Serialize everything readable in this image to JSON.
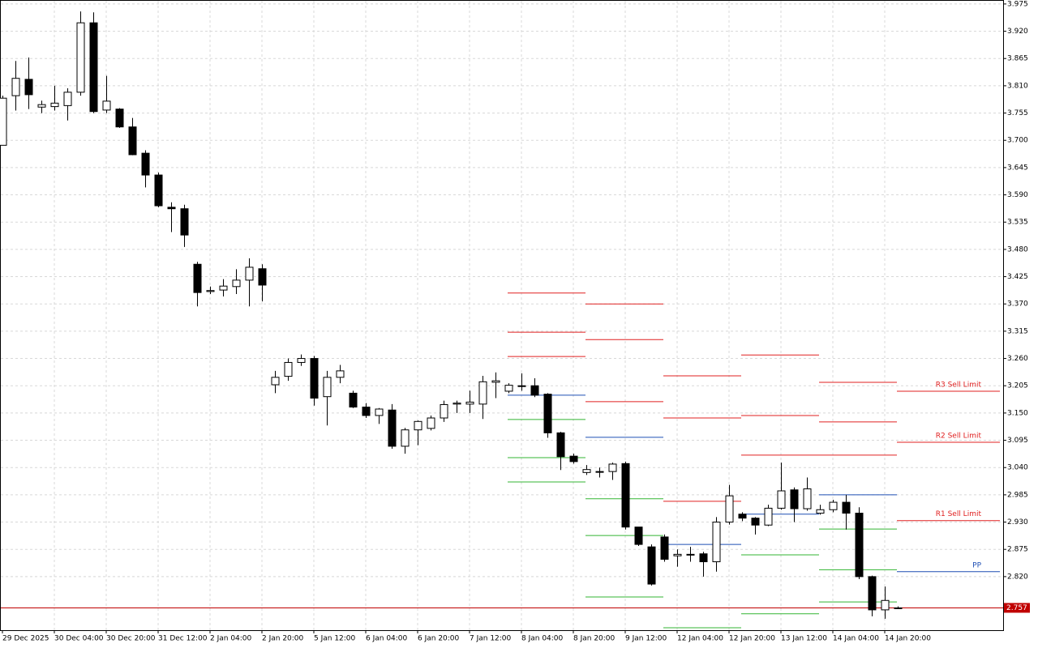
{
  "chart_data": {
    "type": "candlestick",
    "categories": [
      "29 Dec 2025",
      null,
      null,
      null,
      "30 Dec 04:00",
      null,
      null,
      null,
      "30 Dec 20:00",
      null,
      null,
      null,
      "31 Dec 12:00",
      null,
      null,
      null,
      "2 Jan 04:00",
      null,
      null,
      null,
      "2 Jan 20:00",
      null,
      null,
      null,
      "5 Jan 12:00",
      null,
      null,
      null,
      "6 Jan 04:00",
      null,
      null,
      null,
      "6 Jan 20:00",
      null,
      null,
      null,
      "7 Jan 12:00",
      null,
      null,
      null,
      "8 Jan 04:00",
      null,
      null,
      null,
      "8 Jan 20:00",
      null,
      null,
      null,
      "9 Jan 12:00",
      null,
      null,
      null,
      "12 Jan 04:00",
      null,
      null,
      null,
      "12 Jan 20:00",
      null,
      null,
      null,
      "13 Jan 12:00",
      null,
      null,
      null,
      "14 Jan 04:00",
      null,
      null,
      null,
      "14 Jan 20:00",
      null
    ],
    "open": [
      3.69,
      3.79,
      3.823,
      3.767,
      3.768,
      3.77,
      3.797,
      3.937,
      3.761,
      3.763,
      3.727,
      3.674,
      3.63,
      3.565,
      3.562,
      3.45,
      3.395,
      3.398,
      3.405,
      3.418,
      3.441,
      3.207,
      3.224,
      3.252,
      3.26,
      3.183,
      3.222,
      3.19,
      3.162,
      3.145,
      3.156,
      3.083,
      3.116,
      3.119,
      3.14,
      3.168,
      3.168,
      3.168,
      3.212,
      3.194,
      3.204,
      3.205,
      3.188,
      3.11,
      3.063,
      3.03,
      3.032,
      3.032,
      3.048,
      2.92,
      2.88,
      2.9,
      2.862,
      2.865,
      2.866,
      2.85,
      2.93,
      2.946,
      2.938,
      2.924,
      2.958,
      2.995,
      2.957,
      2.948,
      2.955,
      2.97,
      2.948,
      2.82,
      2.753,
      2.757
    ],
    "high": [
      3.79,
      3.86,
      3.867,
      3.78,
      3.81,
      3.805,
      3.96,
      3.958,
      3.83,
      3.765,
      3.745,
      3.68,
      3.635,
      3.575,
      3.57,
      3.455,
      3.405,
      3.42,
      3.44,
      3.462,
      3.45,
      3.235,
      3.26,
      3.268,
      3.265,
      3.235,
      3.247,
      3.195,
      3.17,
      3.16,
      3.168,
      3.12,
      3.135,
      3.145,
      3.175,
      3.175,
      3.195,
      3.225,
      3.232,
      3.21,
      3.23,
      3.22,
      3.19,
      3.112,
      3.068,
      3.045,
      3.04,
      3.05,
      3.052,
      2.92,
      2.885,
      2.905,
      2.875,
      2.88,
      2.87,
      2.94,
      3.005,
      2.95,
      2.94,
      2.965,
      3.05,
      3.0,
      3.02,
      2.965,
      2.975,
      2.985,
      2.96,
      2.822,
      2.8,
      2.76
    ],
    "low": [
      3.69,
      3.76,
      3.763,
      3.755,
      3.76,
      3.74,
      3.79,
      3.755,
      3.755,
      3.725,
      3.67,
      3.605,
      3.565,
      3.515,
      3.485,
      3.365,
      3.39,
      3.385,
      3.39,
      3.365,
      3.375,
      3.19,
      3.215,
      3.245,
      3.165,
      3.125,
      3.21,
      3.16,
      3.14,
      3.128,
      3.078,
      3.068,
      3.085,
      3.115,
      3.132,
      3.15,
      3.15,
      3.138,
      3.18,
      3.19,
      3.195,
      3.182,
      3.1,
      3.035,
      3.048,
      3.025,
      3.02,
      3.015,
      2.915,
      2.882,
      2.802,
      2.85,
      2.84,
      2.85,
      2.82,
      2.83,
      2.925,
      2.932,
      2.905,
      2.922,
      2.955,
      2.93,
      2.953,
      2.945,
      2.95,
      2.915,
      2.815,
      2.74,
      2.735,
      2.755
    ],
    "close": [
      3.785,
      3.825,
      3.792,
      3.772,
      3.775,
      3.797,
      3.937,
      3.758,
      3.779,
      3.727,
      3.671,
      3.63,
      3.568,
      3.562,
      3.509,
      3.393,
      3.397,
      3.406,
      3.418,
      3.444,
      3.408,
      3.222,
      3.252,
      3.26,
      3.18,
      3.222,
      3.235,
      3.162,
      3.145,
      3.158,
      3.083,
      3.116,
      3.133,
      3.14,
      3.167,
      3.17,
      3.172,
      3.213,
      3.215,
      3.206,
      3.205,
      3.186,
      3.11,
      3.062,
      3.052,
      3.036,
      3.032,
      3.047,
      2.92,
      2.885,
      2.805,
      2.855,
      2.865,
      2.865,
      2.85,
      2.93,
      2.983,
      2.938,
      2.924,
      2.958,
      2.993,
      2.957,
      2.997,
      2.955,
      2.97,
      2.948,
      2.82,
      2.753,
      2.772,
      2.757
    ],
    "up_color": "#ffffff",
    "down_color": "#000000",
    "ylim": [
      2.712,
      3.983
    ],
    "yticks": [
      3.975,
      {
        "value": 3.92,
        "label": "3.920"
      },
      3.865,
      {
        "value": 3.81,
        "label": "3.810"
      },
      3.755,
      {
        "value": 3.7,
        "label": "3.700"
      },
      3.645,
      {
        "value": 3.59,
        "label": "3.590"
      },
      3.535,
      {
        "value": 3.48,
        "label": "3.480"
      },
      3.425,
      {
        "value": 3.37,
        "label": "3.370"
      },
      3.315,
      {
        "value": 3.26,
        "label": "3.260"
      },
      3.205,
      {
        "value": 3.15,
        "label": "3.150"
      },
      3.095,
      {
        "value": 3.04,
        "label": "3.040"
      },
      2.985,
      {
        "value": 2.93,
        "label": "2.930"
      },
      2.875,
      {
        "value": 2.82,
        "label": "2.820"
      }
    ],
    "grid": true,
    "resistance_color": "#e02020",
    "pivot_color": "#1f4fb4",
    "support_color": "#33b533",
    "pivot_sets": [
      {
        "resistance": [
          3.392,
          3.313,
          3.264
        ],
        "pivot": 3.186,
        "support": [
          3.137,
          3.06,
          3.011
        ]
      },
      {
        "resistance": [
          3.37,
          3.298,
          3.173
        ],
        "pivot": 3.101,
        "support": [
          2.977,
          2.903,
          2.779
        ]
      },
      {
        "resistance": [
          3.225,
          3.14,
          2.972
        ],
        "pivot": 2.885,
        "support": [
          2.717
        ]
      },
      {
        "resistance": [
          3.267,
          3.145,
          3.065
        ],
        "pivot": 2.946,
        "support": [
          2.864,
          2.745
        ]
      },
      {
        "resistance": [
          3.212,
          3.132,
          3.065
        ],
        "pivot": 2.985,
        "support": [
          2.916,
          2.834,
          2.769
        ]
      }
    ],
    "orders": [
      {
        "label": "R3 Sell Limit",
        "value": 3.194,
        "color": "#e02020"
      },
      {
        "label": "R2 Sell Limit",
        "value": 3.091,
        "color": "#e02020"
      },
      {
        "label": "R1 Sell Limit",
        "value": 2.933,
        "color": "#e02020"
      },
      {
        "label": "PP",
        "value": 2.83,
        "color": "#1f4fb4"
      }
    ],
    "last_price": 2.757,
    "last_price_color": "#c00000"
  }
}
